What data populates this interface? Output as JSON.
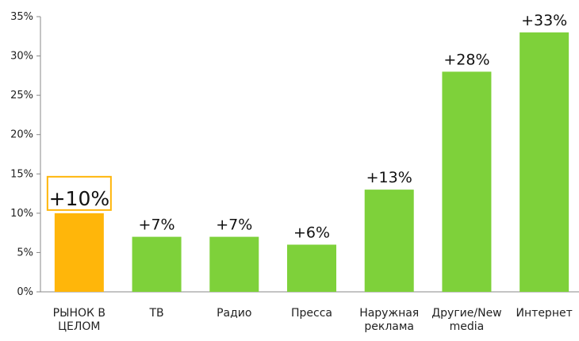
{
  "chart_data": {
    "type": "bar",
    "categories": [
      [
        "РЫНОК В",
        "ЦЕЛОМ"
      ],
      [
        "ТВ"
      ],
      [
        "Радио"
      ],
      [
        "Пресса"
      ],
      [
        "Наружная",
        "реклама"
      ],
      [
        "Другие/New",
        "media"
      ],
      [
        "Интернет"
      ]
    ],
    "values": [
      10,
      7,
      7,
      6,
      13,
      28,
      33
    ],
    "value_labels": [
      "+10%",
      "+7%",
      "+7%",
      "+6%",
      "+13%",
      "+28%",
      "+33%"
    ],
    "highlight_index": 0,
    "ylim": [
      0,
      35
    ],
    "yticks": [
      0,
      5,
      10,
      15,
      20,
      25,
      30,
      35
    ],
    "ytick_labels": [
      "0%",
      "5%",
      "10%",
      "15%",
      "20%",
      "25%",
      "30%",
      "35%"
    ],
    "grid": false,
    "colors": {
      "bar": "#7ed13a",
      "bar_highlight": "#ffb60a",
      "highlight_box": "#ffb60a",
      "axis": "#888888"
    }
  }
}
